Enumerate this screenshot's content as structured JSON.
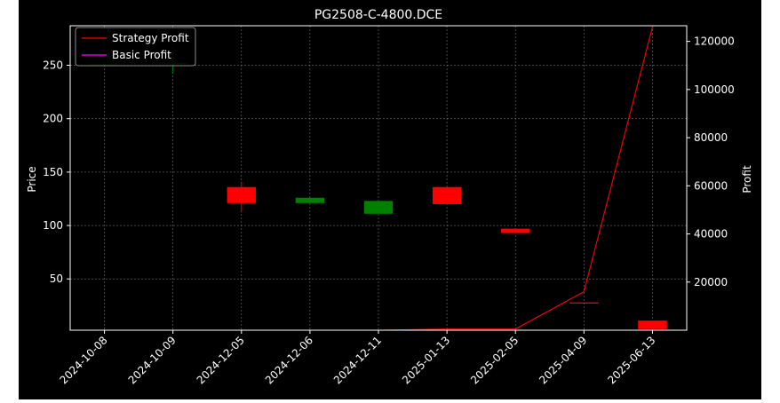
{
  "chart_data": {
    "type": "candlestick-with-lines",
    "title": "PG2508-C-4800.DCE",
    "ylabel_left": "Price",
    "ylabel_right": "Profit",
    "x_categories": [
      "2024-10-08",
      "2024-10-09",
      "2024-12-05",
      "2024-12-06",
      "2024-12-11",
      "2025-01-13",
      "2025-02-05",
      "2025-04-09",
      "2025-06-13"
    ],
    "price_ylim": [
      2,
      287
    ],
    "price_ticks": [
      50,
      100,
      150,
      200,
      250
    ],
    "profit_ylim": [
      0,
      126500
    ],
    "profit_ticks": [
      20000,
      40000,
      60000,
      80000,
      100000,
      120000
    ],
    "profit_tick_labels": [
      "20000",
      "40000",
      "60000",
      "80000",
      "100000",
      "120000"
    ],
    "grid": true,
    "legend_position": "upper-left",
    "candles": [
      {
        "date": "2024-10-08",
        "open": 251,
        "close": 251,
        "high": 251,
        "low": 251,
        "color": "#008000"
      },
      {
        "date": "2024-10-09",
        "open": 252,
        "close": 252,
        "high": 259,
        "low": 242,
        "color": "#008000"
      },
      {
        "date": "2024-12-05",
        "open": 121,
        "close": 136,
        "high": 141,
        "low": 113,
        "color": "#ff0000"
      },
      {
        "date": "2024-12-06",
        "open": 126,
        "close": 121,
        "high": 126,
        "low": 121,
        "color": "#008000"
      },
      {
        "date": "2024-12-11",
        "open": 123,
        "close": 111,
        "high": 123,
        "low": 111,
        "color": "#008000"
      },
      {
        "date": "2025-01-13",
        "open": 120,
        "close": 136,
        "high": 136,
        "low": 120,
        "color": "#ff0000"
      },
      {
        "date": "2025-02-05",
        "open": 93,
        "close": 97,
        "high": 97,
        "low": 93,
        "color": "#ff0000"
      },
      {
        "date": "2025-04-09",
        "open": 28,
        "close": 28,
        "high": 28,
        "low": 28,
        "color": "#ff0000"
      },
      {
        "date": "2025-06-13",
        "open": 3,
        "close": 11,
        "high": 11,
        "low": 3,
        "color": "#ff0000"
      }
    ],
    "series": [
      {
        "name": "Strategy Profit",
        "color": "#ff0000",
        "values": [
          0,
          0,
          0,
          0,
          0,
          500,
          500,
          16000,
          126000
        ]
      },
      {
        "name": "Basic Profit",
        "color": "#ff00ff",
        "values": [
          0,
          0,
          0,
          0,
          0,
          0,
          0,
          0,
          0
        ]
      }
    ]
  }
}
